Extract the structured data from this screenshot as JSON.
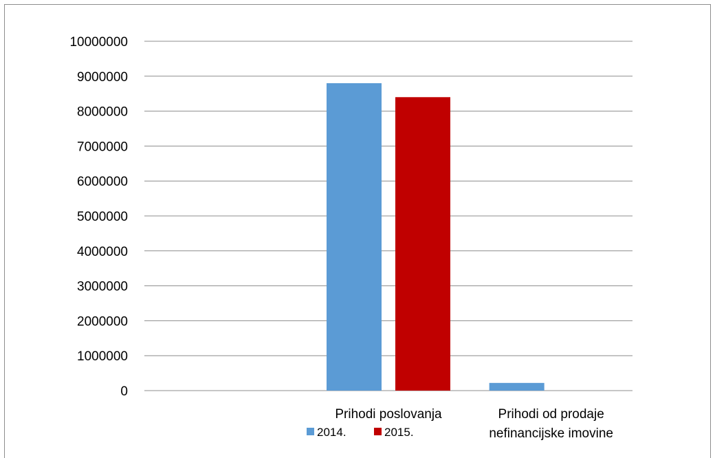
{
  "chart_data": {
    "type": "bar",
    "categories": [
      [
        ""
      ],
      [
        "Prihodi poslovanja"
      ],
      [
        "Prihodi od prodaje",
        "nefinancijske imovine"
      ]
    ],
    "series": [
      {
        "name": "2014.",
        "color": "#5B9BD5",
        "values": [
          0,
          8800000,
          220000
        ]
      },
      {
        "name": "2015.",
        "color": "#C00000",
        "values": [
          0,
          8400000,
          0
        ]
      }
    ],
    "ylim": [
      0,
      10000000
    ],
    "yticks": [
      0,
      1000000,
      2000000,
      3000000,
      4000000,
      5000000,
      6000000,
      7000000,
      8000000,
      9000000,
      10000000
    ],
    "grid": true,
    "legend_position": "bottom",
    "title": "",
    "xlabel": "",
    "ylabel": ""
  },
  "colors": {
    "gridline": "#8c8c8c",
    "axis": "#8c8c8c"
  }
}
